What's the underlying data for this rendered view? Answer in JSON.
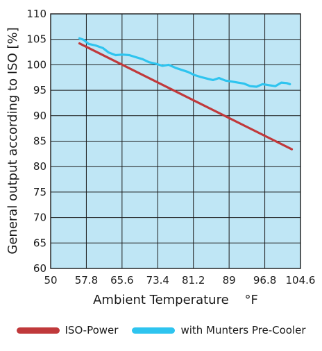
{
  "chart_data": {
    "type": "line",
    "xlabel": "Ambient Temperature    °F",
    "ylabel": "General output according to ISO [%]",
    "xlim": [
      50,
      104.6
    ],
    "ylim": [
      60,
      110
    ],
    "x_ticks": [
      "50",
      "57.8",
      "65.6",
      "73.4",
      "81.2",
      "89",
      "96.8",
      "104.6"
    ],
    "y_ticks": [
      "60",
      "65",
      "70",
      "75",
      "80",
      "85",
      "90",
      "95",
      "100",
      "105",
      "110"
    ],
    "grid": true,
    "background_color": "#bfe6f5",
    "legend_position": "bottom",
    "series": [
      {
        "name": "ISO-Power",
        "color": "#c0393b",
        "x": [
          56.3,
          102.7
        ],
        "y": [
          104.2,
          83.4
        ]
      },
      {
        "name": "with Munters Pre-Cooler",
        "color": "#2ec4ef",
        "x": [
          56.3,
          57.2,
          58.3,
          59.8,
          61.4,
          62.7,
          64.2,
          65.7,
          67.2,
          68.6,
          70.1,
          71.5,
          73.0,
          74.4,
          75.8,
          77.3,
          78.6,
          80.0,
          81.4,
          82.8,
          84.1,
          85.5,
          86.8,
          88.2,
          89.6,
          90.9,
          92.3,
          93.6,
          95.0,
          96.3,
          97.7,
          99.1,
          100.4,
          101.6,
          102.3
        ],
        "y": [
          105.2,
          104.9,
          104.1,
          103.8,
          103.3,
          102.4,
          101.9,
          102.0,
          101.9,
          101.5,
          101.1,
          100.5,
          100.2,
          99.8,
          100.0,
          99.4,
          99.0,
          98.6,
          98.0,
          97.6,
          97.3,
          97.0,
          97.4,
          96.9,
          96.7,
          96.5,
          96.3,
          95.8,
          95.7,
          96.2,
          96.0,
          95.8,
          96.5,
          96.4,
          96.2
        ]
      }
    ]
  }
}
